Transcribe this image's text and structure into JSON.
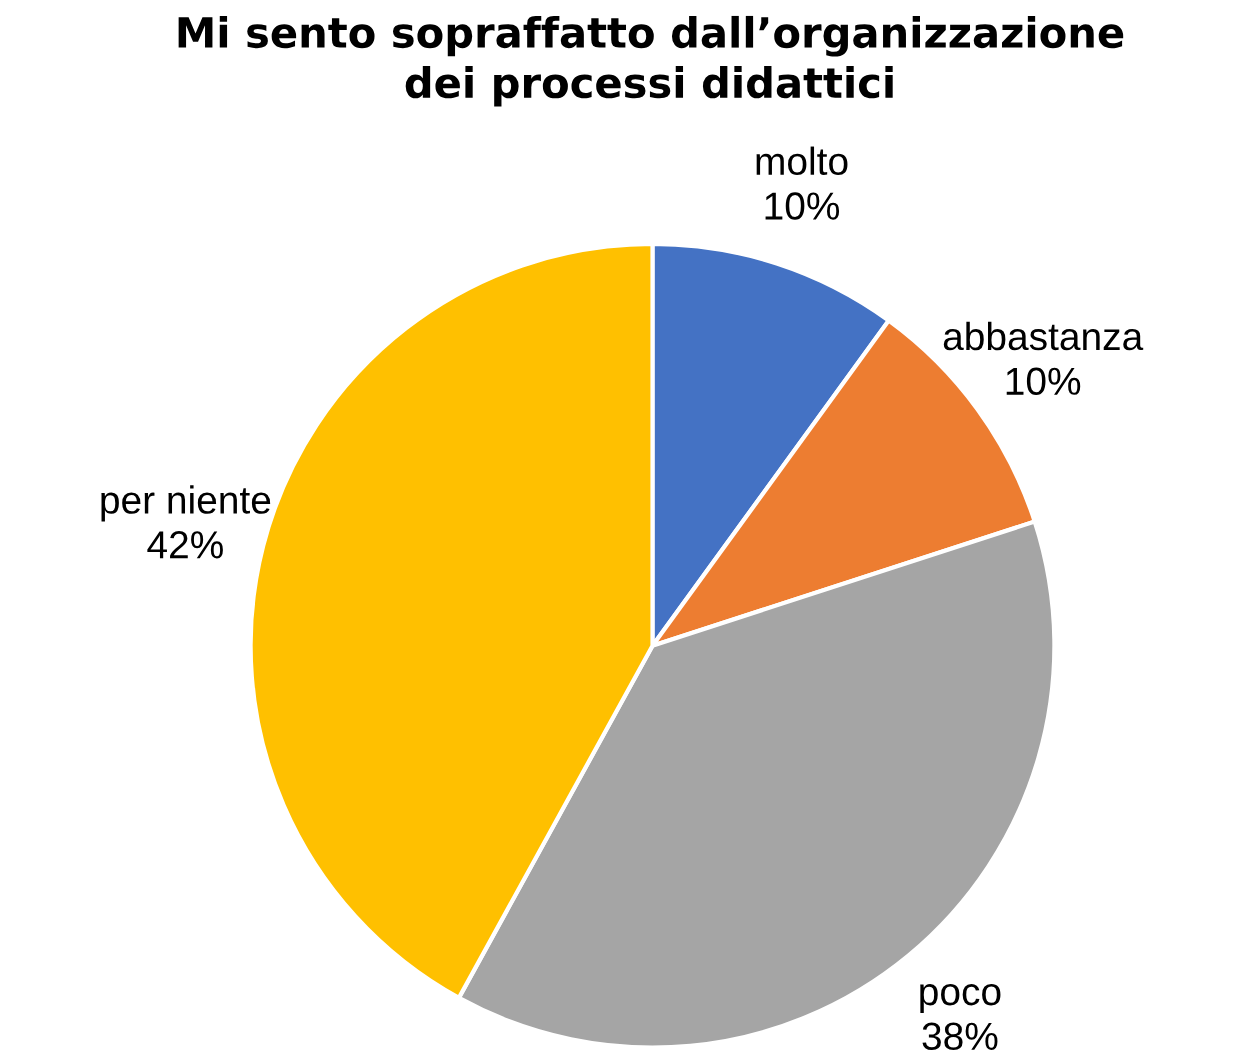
{
  "chart_data": {
    "type": "pie",
    "title": "Mi sento sopraffatto dall’organizzazione\ndei processi didattici",
    "categories": [
      "molto",
      "abbastanza",
      "poco",
      "per niente"
    ],
    "values": [
      10,
      10,
      38,
      42
    ],
    "colors": [
      "#4472c4",
      "#ed7d31",
      "#a5a5a5",
      "#ffc000"
    ],
    "value_labels": [
      "10%",
      "10%",
      "38%",
      "42%"
    ]
  }
}
